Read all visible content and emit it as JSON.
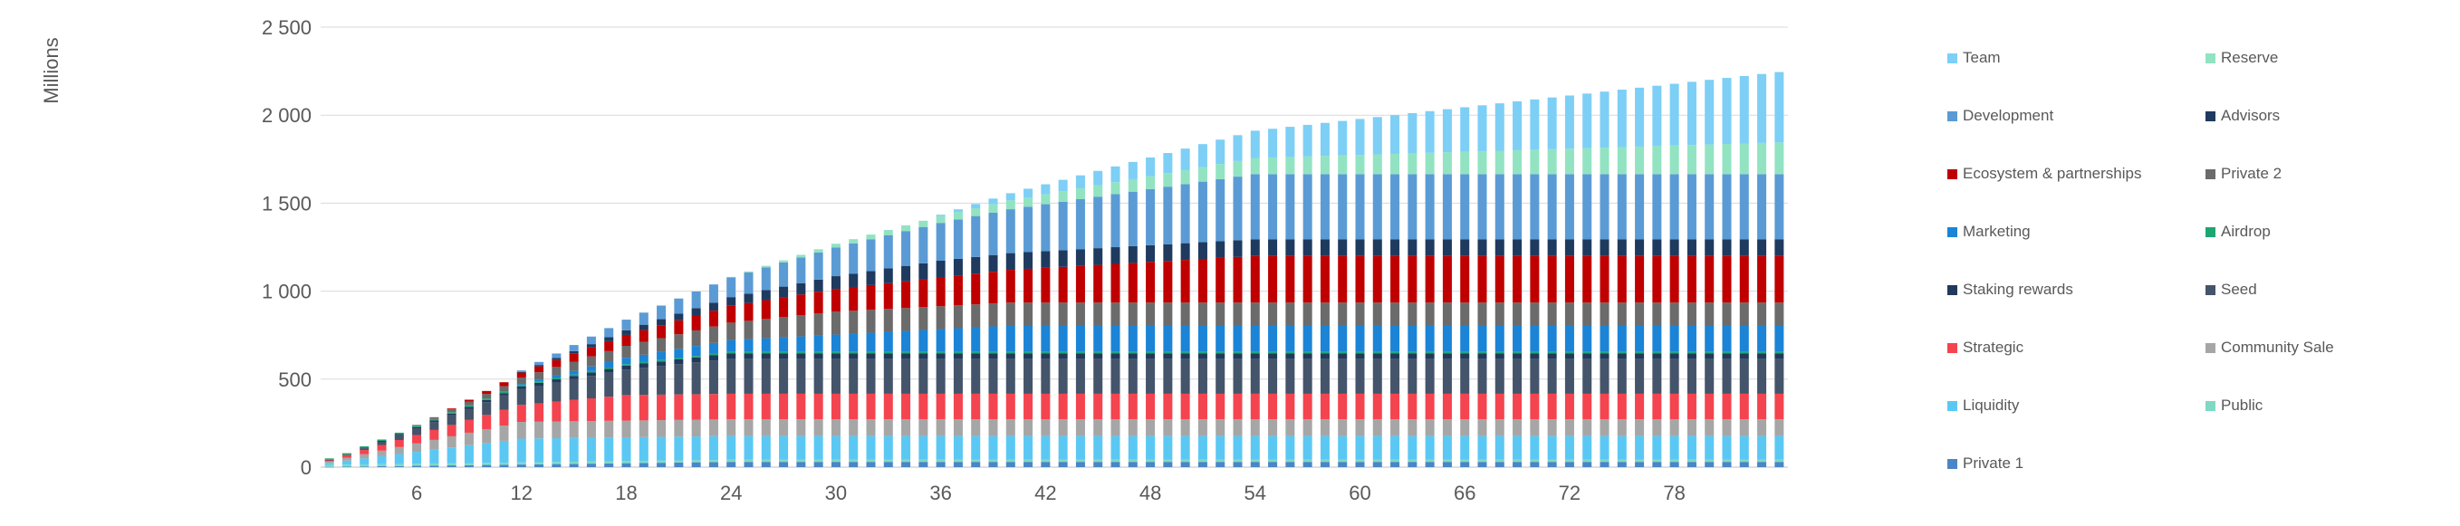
{
  "chart_data": {
    "type": "bar",
    "stacked": true,
    "ylabel": "Millions",
    "ylim": [
      0,
      2500
    ],
    "yticks": [
      0,
      500,
      1000,
      1500,
      2000,
      2500
    ],
    "ytick_labels": [
      "0",
      "500",
      "1 000",
      "1 500",
      "2 000",
      "2 500"
    ],
    "x_start": 1,
    "x_end": 84,
    "xticks": [
      6,
      12,
      18,
      24,
      30,
      36,
      42,
      48,
      54,
      60,
      66,
      72,
      78
    ],
    "grid": true,
    "legend_position": "right",
    "series": [
      {
        "name": "Team",
        "color": "#7DCFF6",
        "start": 36,
        "end": 84,
        "max": 400
      },
      {
        "name": "Reserve",
        "color": "#92E3C2",
        "start": 24,
        "end": 84,
        "max": 180
      },
      {
        "name": "Development",
        "color": "#5B9BD5",
        "start": 12,
        "end": 54,
        "max": 370
      },
      {
        "name": "Advisors",
        "color": "#1F3A5F",
        "start": 12,
        "end": 36,
        "max": 95
      },
      {
        "name": "Ecosystem & partnerships",
        "color": "#C00000",
        "start": 8,
        "end": 54,
        "max": 265
      },
      {
        "name": "Private 2",
        "color": "#6B6B6B",
        "start": 6,
        "end": 30,
        "max": 130
      },
      {
        "name": "Marketing",
        "color": "#1B84D6",
        "start": 12,
        "end": 40,
        "max": 150
      },
      {
        "name": "Airdrop",
        "color": "#1EA672",
        "start": 1,
        "end": 1,
        "max": 8
      },
      {
        "name": "Staking rewards",
        "color": "#203A5C",
        "start": 1,
        "end": 24,
        "max": 30
      },
      {
        "name": "Seed",
        "color": "#44546A",
        "start": 3,
        "end": 24,
        "max": 200
      },
      {
        "name": "Strategic",
        "color": "#F4444F",
        "start": 1,
        "end": 18,
        "max": 145
      },
      {
        "name": "Community Sale",
        "color": "#A6A6A6",
        "start": 1,
        "end": 12,
        "max": 95
      },
      {
        "name": "Liquidity",
        "color": "#5BC8F4",
        "start": 1,
        "end": 12,
        "max": 135
      },
      {
        "name": "Public",
        "color": "#7ED9C4",
        "start": 1,
        "end": 1,
        "max": 12
      },
      {
        "name": "Private 1",
        "color": "#4A86C5",
        "start": 1,
        "end": 24,
        "max": 30
      }
    ]
  }
}
